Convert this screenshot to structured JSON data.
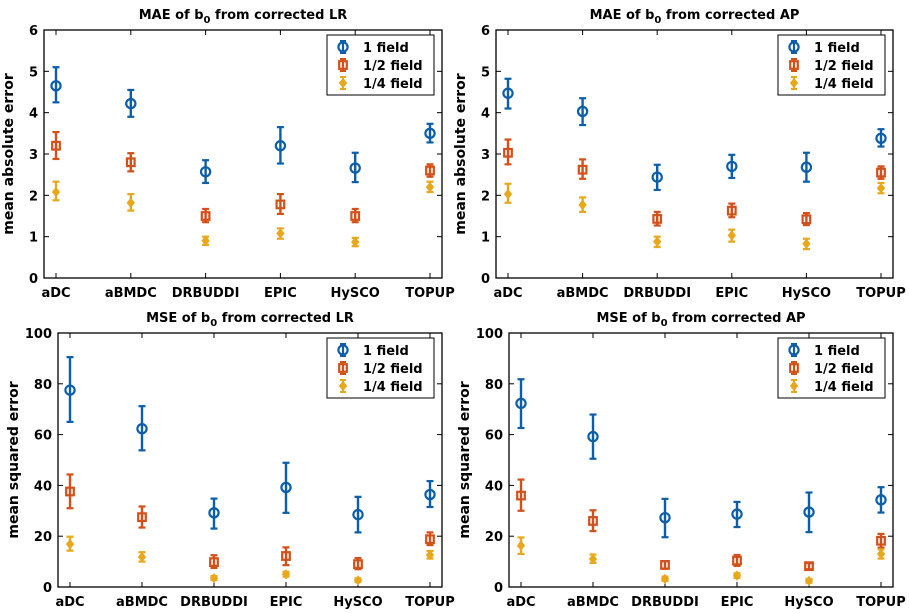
{
  "chart_data": [
    {
      "type": "errorbar",
      "title": "MAE of b",
      "title_sub": "0",
      "title_rest": " from corrected LR",
      "xlabel": "",
      "ylabel": "mean absolute error",
      "categories": [
        "aDC",
        "aBMDC",
        "DRBUDDI",
        "EPIC",
        "HySCO",
        "TOPUP"
      ],
      "ylim": [
        0,
        6
      ],
      "yticks": [
        "0",
        "1",
        "2",
        "3",
        "4",
        "5",
        "6"
      ],
      "legend_position": "top-right",
      "series": [
        {
          "name": "1 field",
          "color": "#0d5ea8",
          "marker": "circle",
          "values": [
            4.65,
            4.22,
            2.57,
            3.2,
            2.66,
            3.5
          ],
          "err_low": [
            4.25,
            3.9,
            2.3,
            2.77,
            2.32,
            3.28
          ],
          "err_high": [
            5.1,
            4.55,
            2.85,
            3.65,
            3.03,
            3.73
          ]
        },
        {
          "name": "1/2 field",
          "color": "#d3501a",
          "marker": "square",
          "values": [
            3.2,
            2.8,
            1.5,
            1.78,
            1.5,
            2.6
          ],
          "err_low": [
            2.88,
            2.58,
            1.35,
            1.55,
            1.35,
            2.45
          ],
          "err_high": [
            3.53,
            3.02,
            1.67,
            2.03,
            1.67,
            2.75
          ]
        },
        {
          "name": "1/4 field",
          "color": "#e8a81c",
          "marker": "diamond",
          "values": [
            2.08,
            1.82,
            0.9,
            1.08,
            0.87,
            2.2
          ],
          "err_low": [
            1.88,
            1.63,
            0.8,
            0.95,
            0.77,
            2.08
          ],
          "err_high": [
            2.33,
            2.03,
            1.0,
            1.2,
            0.97,
            2.33
          ]
        }
      ]
    },
    {
      "type": "errorbar",
      "title": "MAE of b",
      "title_sub": "0",
      "title_rest": " from corrected AP",
      "xlabel": "",
      "ylabel": "mean absolute error",
      "categories": [
        "aDC",
        "aBMDC",
        "DRBUDDI",
        "EPIC",
        "HySCO",
        "TOPUP"
      ],
      "ylim": [
        0,
        6
      ],
      "yticks": [
        "0",
        "1",
        "2",
        "3",
        "4",
        "5",
        "6"
      ],
      "legend_position": "top-right",
      "series": [
        {
          "name": "1 field",
          "color": "#0d5ea8",
          "marker": "circle",
          "values": [
            4.47,
            4.03,
            2.44,
            2.7,
            2.68,
            3.38
          ],
          "err_low": [
            4.1,
            3.7,
            2.13,
            2.42,
            2.33,
            3.18
          ],
          "err_high": [
            4.82,
            4.35,
            2.74,
            2.98,
            3.03,
            3.6
          ]
        },
        {
          "name": "1/2 field",
          "color": "#d3501a",
          "marker": "square",
          "values": [
            3.03,
            2.62,
            1.43,
            1.63,
            1.42,
            2.55
          ],
          "err_low": [
            2.75,
            2.4,
            1.27,
            1.47,
            1.28,
            2.4
          ],
          "err_high": [
            3.35,
            2.87,
            1.6,
            1.8,
            1.57,
            2.7
          ]
        },
        {
          "name": "1/4 field",
          "color": "#e8a81c",
          "marker": "diamond",
          "values": [
            2.03,
            1.77,
            0.88,
            1.03,
            0.83,
            2.17
          ],
          "err_low": [
            1.82,
            1.6,
            0.75,
            0.88,
            0.7,
            2.05
          ],
          "err_high": [
            2.28,
            1.95,
            1.0,
            1.17,
            0.95,
            2.3
          ]
        }
      ]
    },
    {
      "type": "errorbar",
      "title": "MSE of b",
      "title_sub": "0",
      "title_rest": " from corrected LR",
      "xlabel": "",
      "ylabel": "mean squared error",
      "categories": [
        "aDC",
        "aBMDC",
        "DRBUDDI",
        "EPIC",
        "HySCO",
        "TOPUP"
      ],
      "ylim": [
        0,
        100
      ],
      "yticks": [
        "0",
        "20",
        "40",
        "60",
        "80",
        "100"
      ],
      "legend_position": "top-right",
      "series": [
        {
          "name": "1 field",
          "color": "#0d5ea8",
          "marker": "circle",
          "values": [
            77.5,
            62.3,
            29.2,
            39.2,
            28.5,
            36.4
          ],
          "err_low": [
            65,
            53.8,
            23,
            29.2,
            21.5,
            31.5
          ],
          "err_high": [
            90.5,
            71.2,
            34.8,
            48.9,
            35.5,
            41.7
          ]
        },
        {
          "name": "1/2 field",
          "color": "#d3501a",
          "marker": "square",
          "values": [
            37.6,
            27.5,
            9.8,
            12.2,
            9,
            18.8
          ],
          "err_low": [
            31,
            23.4,
            7.5,
            8.6,
            7,
            16.5
          ],
          "err_high": [
            44.3,
            31.7,
            12.5,
            15.6,
            11.4,
            21.5
          ]
        },
        {
          "name": "1/4 field",
          "color": "#e8a81c",
          "marker": "diamond",
          "values": [
            16.9,
            11.8,
            3.5,
            5,
            2.6,
            12.6
          ],
          "err_low": [
            14.3,
            10,
            2.8,
            4.1,
            2,
            11.2
          ],
          "err_high": [
            19.8,
            13.7,
            4.3,
            6,
            3.4,
            14.2
          ]
        }
      ]
    },
    {
      "type": "errorbar",
      "title": "MSE of b",
      "title_sub": "0",
      "title_rest": " from corrected AP",
      "xlabel": "",
      "ylabel": "mean squared error",
      "categories": [
        "aDC",
        "aBMDC",
        "DRBUDDI",
        "EPIC",
        "HySCO",
        "TOPUP"
      ],
      "ylim": [
        0,
        100
      ],
      "yticks": [
        "0",
        "20",
        "40",
        "60",
        "80",
        "100"
      ],
      "legend_position": "top-right",
      "series": [
        {
          "name": "1 field",
          "color": "#0d5ea8",
          "marker": "circle",
          "values": [
            72.3,
            59.2,
            27.3,
            28.7,
            29.5,
            34.3
          ],
          "err_low": [
            62.6,
            50.5,
            19.6,
            23.6,
            21.6,
            29.3
          ],
          "err_high": [
            81.8,
            67.9,
            34.7,
            33.5,
            37.2,
            39.3
          ]
        },
        {
          "name": "1/2 field",
          "color": "#d3501a",
          "marker": "square",
          "values": [
            36,
            26,
            8.7,
            10.4,
            8.2,
            18.2
          ],
          "err_low": [
            30,
            22,
            7.2,
            8.3,
            7,
            15.5
          ],
          "err_high": [
            42.3,
            30.2,
            10.2,
            12.6,
            9.4,
            20.9
          ]
        },
        {
          "name": "1/4 field",
          "color": "#e8a81c",
          "marker": "diamond",
          "values": [
            16.3,
            11,
            3.2,
            4.5,
            2.4,
            13
          ],
          "err_low": [
            13,
            9.5,
            2.4,
            3.6,
            1.7,
            11.2
          ],
          "err_high": [
            19.5,
            12.8,
            4.1,
            5.4,
            3.2,
            14.8
          ]
        }
      ]
    }
  ]
}
